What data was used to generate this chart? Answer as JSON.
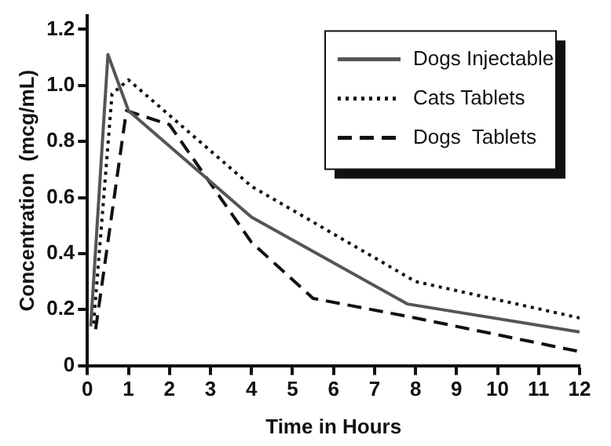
{
  "chart_data": {
    "type": "line",
    "xlabel": "Time in Hours",
    "ylabel": "Concentration  (mcg/mL)",
    "xlim": [
      0,
      12
    ],
    "ylim": [
      0,
      1.25
    ],
    "xticks": [
      0,
      1,
      2,
      3,
      4,
      5,
      6,
      7,
      8,
      9,
      10,
      11,
      12
    ],
    "yticks": [
      0,
      0.2,
      0.4,
      0.6,
      0.8,
      {
        "value": 1,
        "label": "1.0"
      },
      1.2
    ],
    "grid": false,
    "legend": "top right",
    "marker": "none",
    "series": [
      {
        "name": "Dogs Injectable",
        "color": "#555555",
        "line_style": "solid",
        "x": [
          0.08,
          0.5,
          1,
          4,
          7.8,
          12
        ],
        "values": [
          0.14,
          1.11,
          0.91,
          0.53,
          0.22,
          0.12
        ]
      },
      {
        "name": "Cats Tablets",
        "color": "#111111",
        "line_style": "dotted",
        "x": [
          0.15,
          0.6,
          1,
          4,
          8,
          12
        ],
        "values": [
          0.15,
          0.97,
          1.02,
          0.64,
          0.3,
          0.17
        ]
      },
      {
        "name": "Dogs  Tablets",
        "color": "#111111",
        "line_style": "dashed",
        "x": [
          0.2,
          0.95,
          2,
          4,
          5.5,
          8,
          12
        ],
        "values": [
          0.13,
          0.91,
          0.86,
          0.44,
          0.24,
          0.17,
          0.05
        ]
      }
    ]
  }
}
